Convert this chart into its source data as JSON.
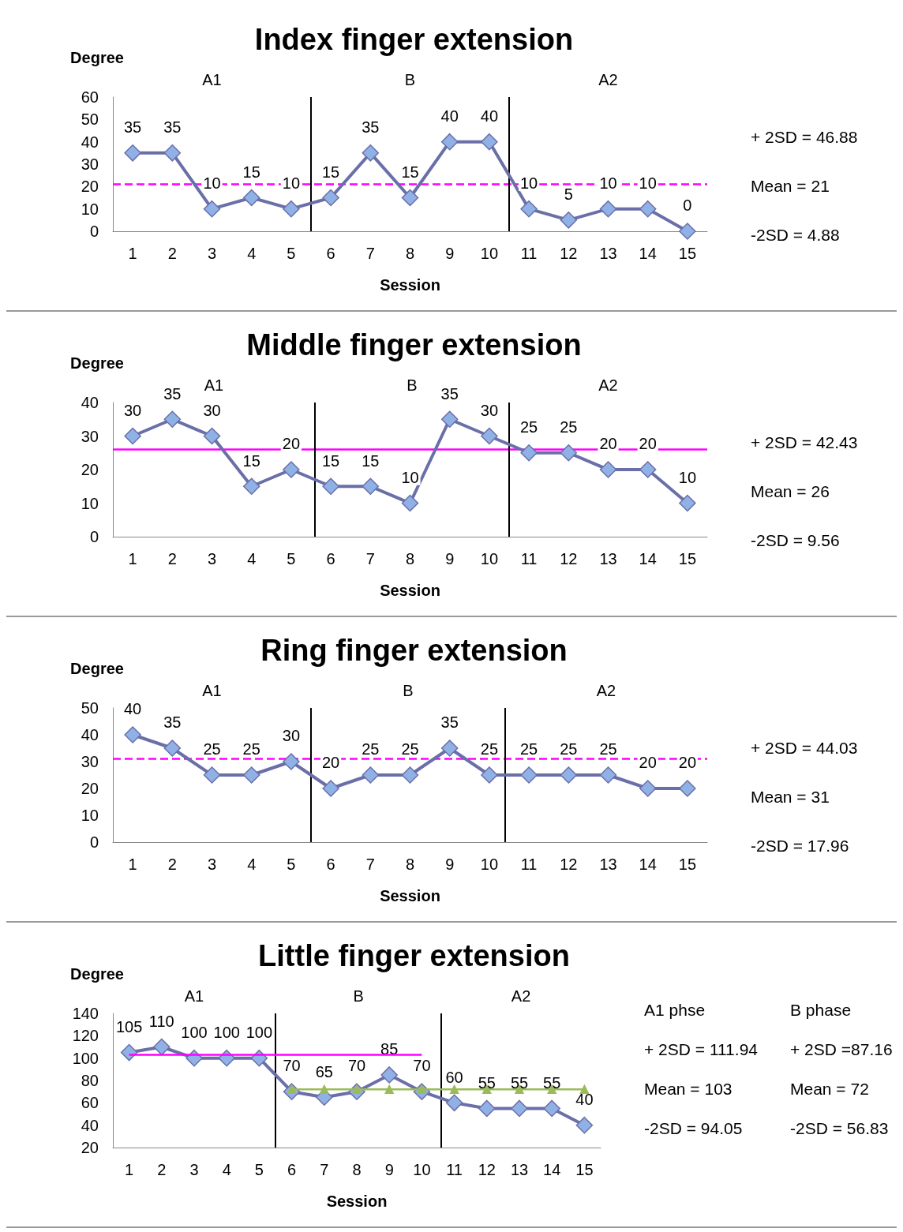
{
  "chart_data": [
    {
      "type": "line",
      "title": "Index finger extension",
      "ylabel": "Degree",
      "xlabel": "Session",
      "x": [
        1,
        2,
        3,
        4,
        5,
        6,
        7,
        8,
        9,
        10,
        11,
        12,
        13,
        14,
        15
      ],
      "xlim": [
        0.5,
        15.5
      ],
      "xticks": [
        1,
        2,
        3,
        4,
        5,
        6,
        7,
        8,
        9,
        10,
        11,
        12,
        13,
        14,
        15
      ],
      "ylim": [
        0,
        60
      ],
      "yticks": [
        0,
        10,
        20,
        30,
        40,
        50,
        60
      ],
      "marker": "diamond",
      "data_labels": true,
      "series": [
        {
          "color": "#6a6fa8",
          "values": [
            35,
            35,
            10,
            15,
            10,
            15,
            35,
            15,
            40,
            40,
            10,
            5,
            10,
            10,
            0
          ]
        }
      ],
      "ref_lines": [
        {
          "axis": "y",
          "value": 21,
          "color": "#ff00ff",
          "line_style": "dashed"
        },
        {
          "axis": "x",
          "value": 5.5,
          "color": "#000000"
        },
        {
          "axis": "x",
          "value": 10.5,
          "color": "#000000"
        }
      ],
      "annotations": [
        "A1",
        "B",
        "A2",
        "+ 2SD = 46.88",
        "Mean = 21",
        "-2SD = 4.88"
      ]
    },
    {
      "type": "line",
      "title": "Middle finger extension",
      "ylabel": "Degree",
      "xlabel": "Session",
      "x": [
        1,
        2,
        3,
        4,
        5,
        6,
        7,
        8,
        9,
        10,
        11,
        12,
        13,
        14,
        15
      ],
      "xlim": [
        0.5,
        15.5
      ],
      "xticks": [
        1,
        2,
        3,
        4,
        5,
        6,
        7,
        8,
        9,
        10,
        11,
        12,
        13,
        14,
        15
      ],
      "ylim": [
        0,
        40
      ],
      "yticks": [
        0,
        10,
        20,
        30,
        40
      ],
      "marker": "diamond",
      "data_labels": true,
      "series": [
        {
          "color": "#6a6fa8",
          "values": [
            30,
            35,
            30,
            15,
            20,
            15,
            15,
            10,
            35,
            30,
            25,
            25,
            20,
            20,
            10
          ]
        }
      ],
      "ref_lines": [
        {
          "axis": "y",
          "value": 26,
          "color": "#ff00ff",
          "line_style": "solid"
        },
        {
          "axis": "x",
          "value": 5.6,
          "color": "#000000"
        },
        {
          "axis": "x",
          "value": 10.5,
          "color": "#000000"
        }
      ],
      "annotations": [
        "A1",
        "B",
        "A2",
        "+ 2SD = 42.43",
        "Mean = 26",
        "-2SD = 9.56"
      ]
    },
    {
      "type": "line",
      "title": "Ring finger extension",
      "ylabel": "Degree",
      "xlabel": "Session",
      "x": [
        1,
        2,
        3,
        4,
        5,
        6,
        7,
        8,
        9,
        10,
        11,
        12,
        13,
        14,
        15
      ],
      "xlim": [
        0.5,
        15.5
      ],
      "xticks": [
        1,
        2,
        3,
        4,
        5,
        6,
        7,
        8,
        9,
        10,
        11,
        12,
        13,
        14,
        15
      ],
      "ylim": [
        0,
        50
      ],
      "yticks": [
        0,
        10,
        20,
        30,
        40,
        50
      ],
      "marker": "diamond",
      "data_labels": true,
      "series": [
        {
          "color": "#6a6fa8",
          "values": [
            40,
            35,
            25,
            25,
            30,
            20,
            25,
            25,
            35,
            25,
            25,
            25,
            25,
            20,
            20
          ]
        }
      ],
      "ref_lines": [
        {
          "axis": "y",
          "value": 31,
          "color": "#ff00ff",
          "line_style": "dashed"
        },
        {
          "axis": "x",
          "value": 5.5,
          "color": "#000000"
        },
        {
          "axis": "x",
          "value": 10.4,
          "color": "#000000"
        }
      ],
      "annotations": [
        "A1",
        "B",
        "A2",
        "+ 2SD = 44.03",
        "Mean = 31",
        "-2SD = 17.96"
      ]
    },
    {
      "type": "line",
      "title": "Little finger extension",
      "ylabel": "Degree",
      "xlabel": "Session",
      "x": [
        1,
        2,
        3,
        4,
        5,
        6,
        7,
        8,
        9,
        10,
        11,
        12,
        13,
        14,
        15
      ],
      "xlim": [
        0.5,
        15.5
      ],
      "xticks": [
        1,
        2,
        3,
        4,
        5,
        6,
        7,
        8,
        9,
        10,
        11,
        12,
        13,
        14,
        15
      ],
      "ylim": [
        20,
        140
      ],
      "yticks": [
        20,
        40,
        60,
        80,
        100,
        120,
        140
      ],
      "marker": "diamond",
      "data_labels": true,
      "series": [
        {
          "color": "#6a6fa8",
          "values": [
            105,
            110,
            100,
            100,
            100,
            70,
            65,
            70,
            85,
            70,
            60,
            55,
            55,
            55,
            40
          ]
        },
        {
          "color": "#ff00ff",
          "x": [
            1,
            2,
            3,
            4,
            5,
            6,
            7,
            8,
            9,
            10
          ],
          "values": [
            103,
            103,
            103,
            103,
            103,
            103,
            103,
            103,
            103,
            103
          ],
          "marker": "none",
          "data_labels": false
        },
        {
          "color": "#9bbb59",
          "x": [
            6,
            7,
            8,
            9,
            10,
            11,
            12,
            13,
            14,
            15
          ],
          "values": [
            72,
            72,
            72,
            72,
            72,
            72,
            72,
            72,
            72,
            72
          ],
          "marker": "triangle",
          "data_labels": false
        }
      ],
      "ref_lines": [
        {
          "axis": "x",
          "value": 5.5,
          "color": "#000000"
        },
        {
          "axis": "x",
          "value": 10.6,
          "color": "#000000"
        }
      ],
      "annotations": [
        "A1",
        "B",
        "A2",
        "A1 phse",
        "+ 2SD = 111.94",
        "Mean = 103",
        "-2SD = 94.05",
        "B phase",
        "+ 2SD =87.16",
        "Mean = 72",
        "-2SD = 56.83"
      ]
    }
  ]
}
